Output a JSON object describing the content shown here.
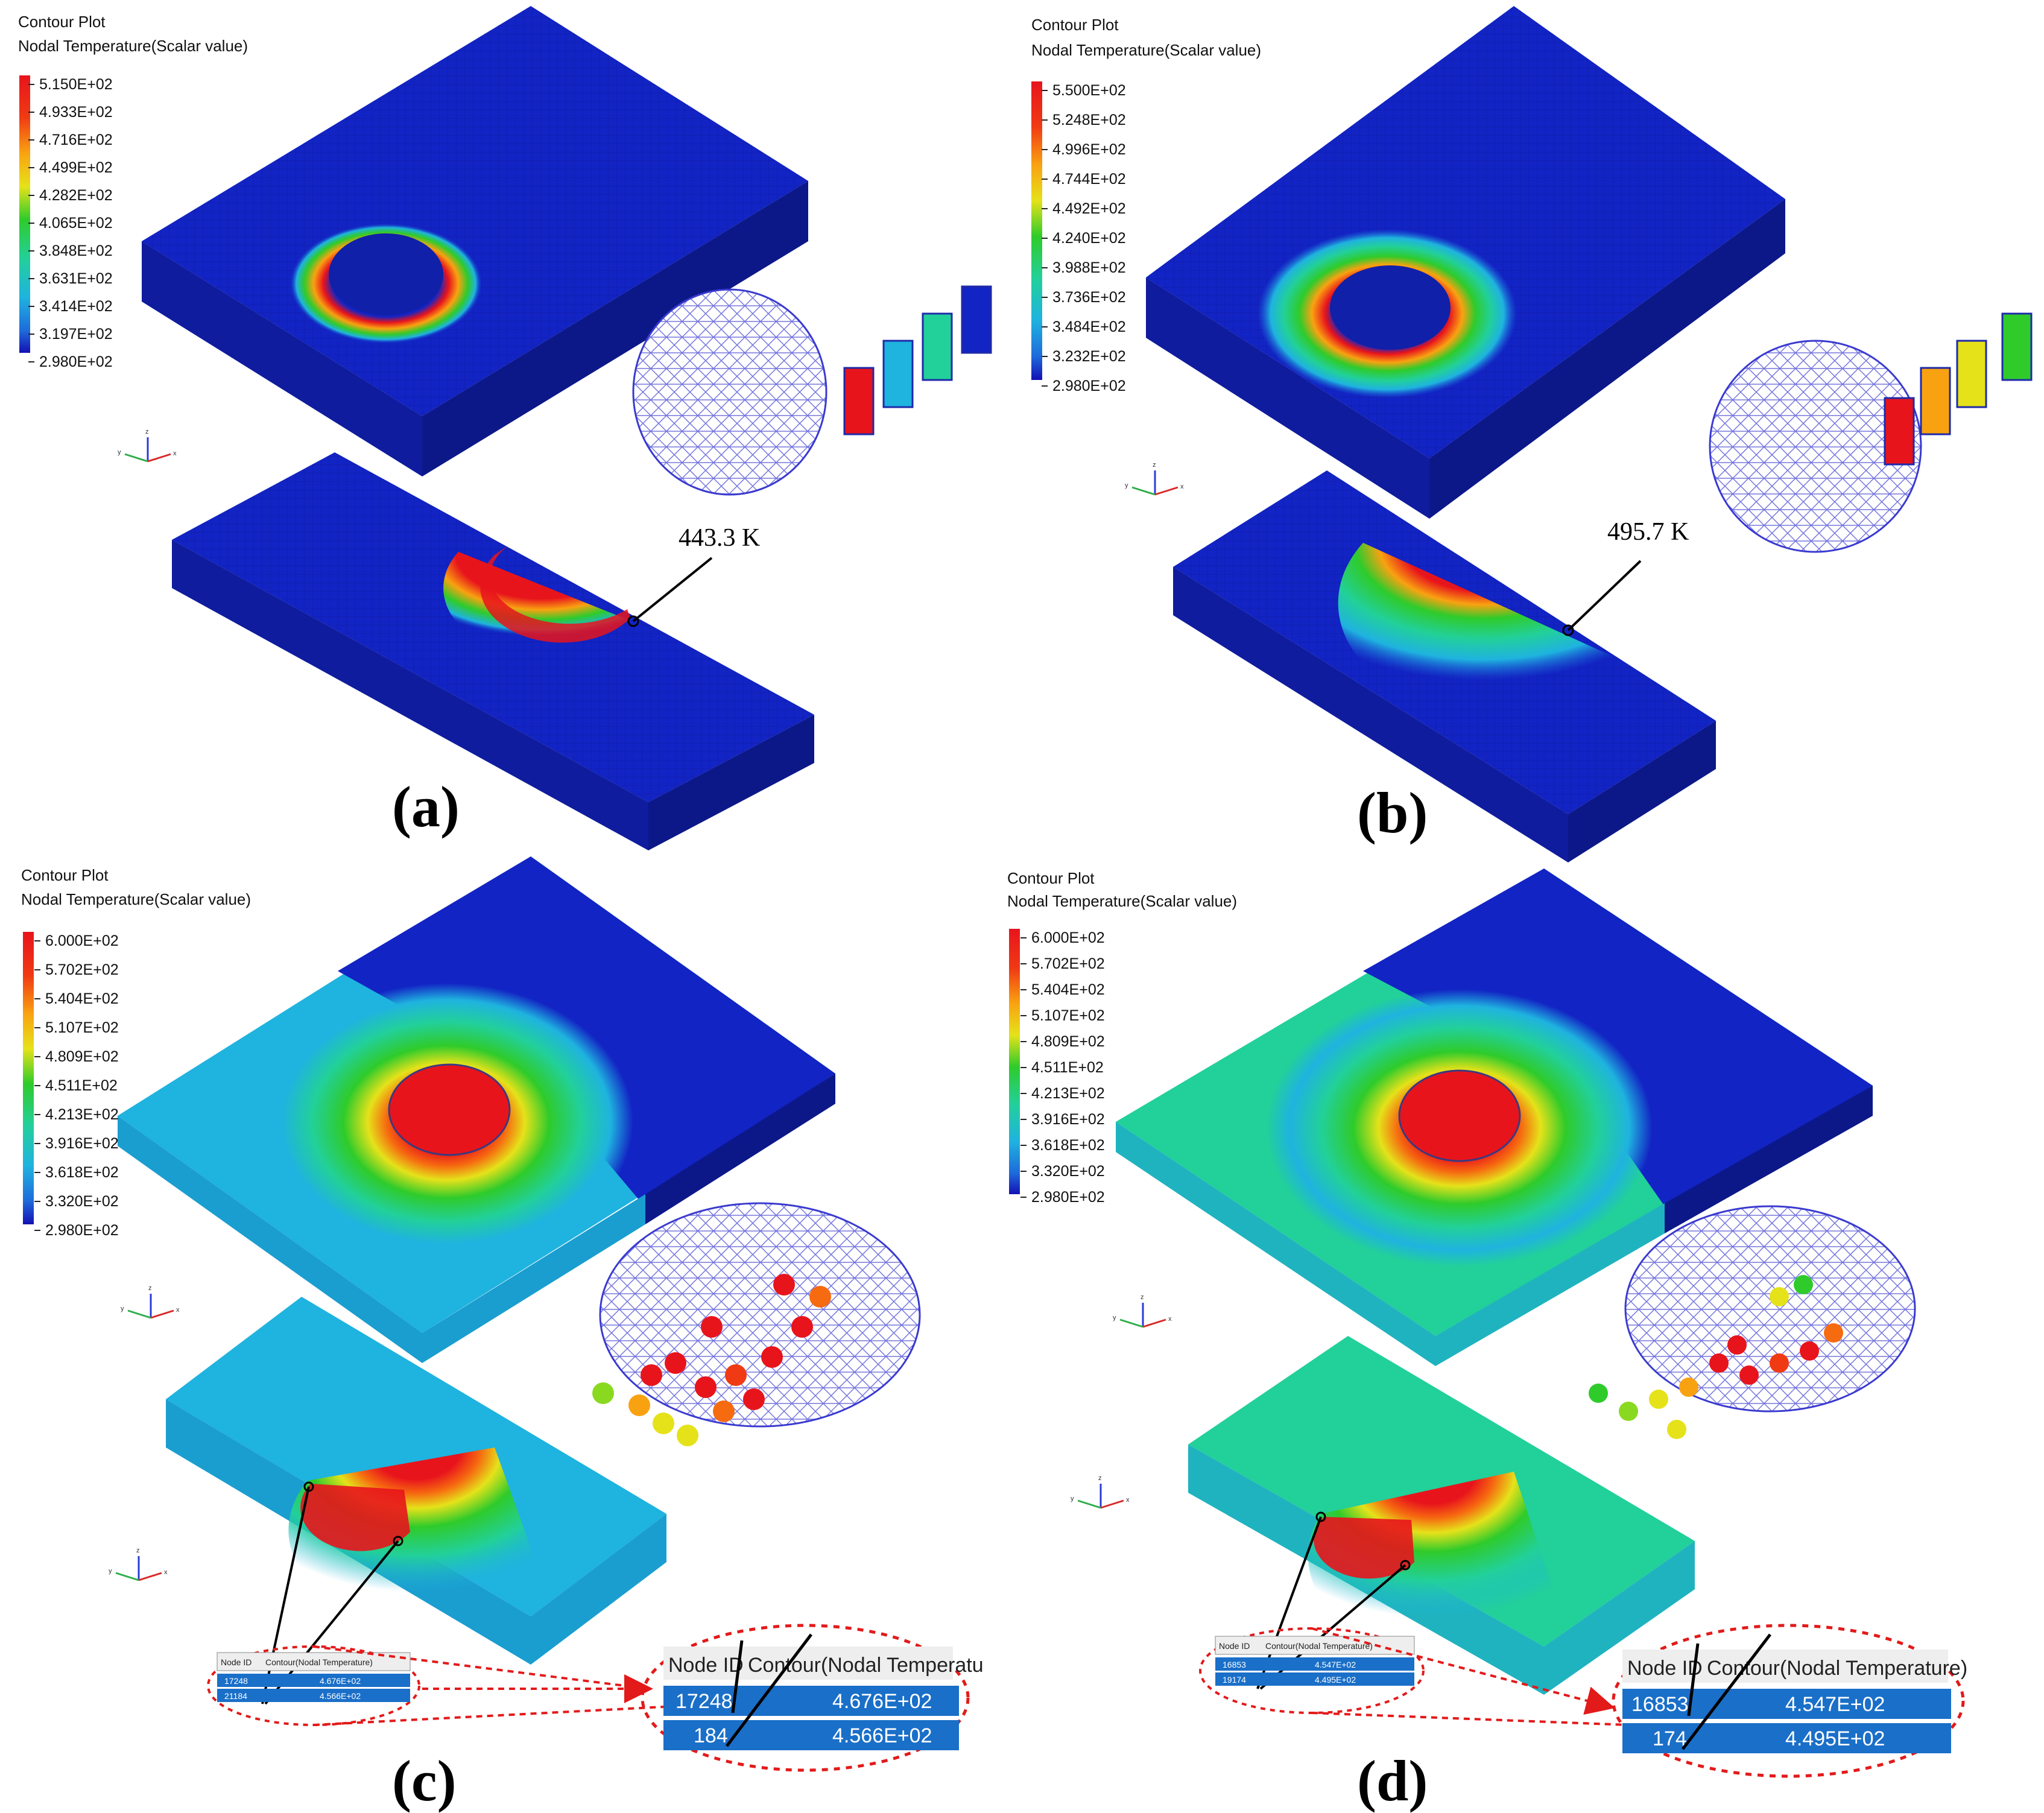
{
  "panels": {
    "a": {
      "label": "(a)",
      "legend_title_1": "Contour Plot",
      "legend_title_2": "Nodal Temperature(Scalar value)",
      "legend_values": [
        "5.150E+02",
        "4.933E+02",
        "4.716E+02",
        "4.499E+02",
        "4.282E+02",
        "4.065E+02",
        "3.848E+02",
        "3.631E+02",
        "3.414E+02",
        "3.197E+02",
        "2.980E+02"
      ],
      "annotation": "443.3 K"
    },
    "b": {
      "label": "(b)",
      "legend_title_1": "Contour Plot",
      "legend_title_2": "Nodal Temperature(Scalar value)",
      "legend_values": [
        "5.500E+02",
        "5.248E+02",
        "4.996E+02",
        "4.744E+02",
        "4.492E+02",
        "4.240E+02",
        "3.988E+02",
        "3.736E+02",
        "3.484E+02",
        "3.232E+02",
        "2.980E+02"
      ],
      "annotation": "495.7 K"
    },
    "c": {
      "label": "(c)",
      "legend_title_1": "Contour Plot",
      "legend_title_2": "Nodal Temperature(Scalar value)",
      "legend_values": [
        "6.000E+02",
        "5.702E+02",
        "5.404E+02",
        "5.107E+02",
        "4.809E+02",
        "4.511E+02",
        "4.213E+02",
        "3.916E+02",
        "3.618E+02",
        "3.320E+02",
        "2.980E+02"
      ],
      "table_headers": [
        "Node ID",
        "Contour(Nodal Temperature)"
      ],
      "zoom_headers": [
        "Node ID",
        "Contour(Nodal Temperatu"
      ],
      "rows": [
        {
          "id": "17248",
          "value": "4.676E+02"
        },
        {
          "id": "21184",
          "value": "4.566E+02"
        }
      ],
      "zoom_rows": [
        {
          "id": "17248",
          "value": "4.676E+02"
        },
        {
          "id": "184",
          "value": "4.566E+02"
        }
      ]
    },
    "d": {
      "label": "(d)",
      "legend_title_1": "Contour Plot",
      "legend_title_2": "Nodal Temperature(Scalar value)",
      "legend_values": [
        "6.000E+02",
        "5.702E+02",
        "5.404E+02",
        "5.107E+02",
        "4.809E+02",
        "4.511E+02",
        "4.213E+02",
        "3.916E+02",
        "3.618E+02",
        "3.320E+02",
        "2.980E+02"
      ],
      "table_headers": [
        "Node ID",
        "Contour(Nodal Temperature)"
      ],
      "zoom_headers": [
        "Node ID",
        "Contour(Nodal Temperature)"
      ],
      "rows": [
        {
          "id": "16853",
          "value": "4.547E+02"
        },
        {
          "id": "19174",
          "value": "4.495E+02"
        }
      ],
      "zoom_rows": [
        {
          "id": "16853",
          "value": "4.547E+02"
        },
        {
          "id": "174",
          "value": "4.495E+02"
        }
      ]
    }
  },
  "axis_labels": {
    "x": "x",
    "y": "y",
    "z": "z"
  },
  "colors": {
    "scale": [
      "#e8141c",
      "#f03a14",
      "#f66a10",
      "#f9a211",
      "#e5e21a",
      "#8ad921",
      "#2fcb2b",
      "#22d09a",
      "#1fb3df",
      "#1e6bdb",
      "#1410b4"
    ],
    "plate_base": "#1224c4",
    "mesh": "#3a3ad0",
    "table_cell": "#1a6fc8",
    "dashed": "#e31a1a"
  }
}
